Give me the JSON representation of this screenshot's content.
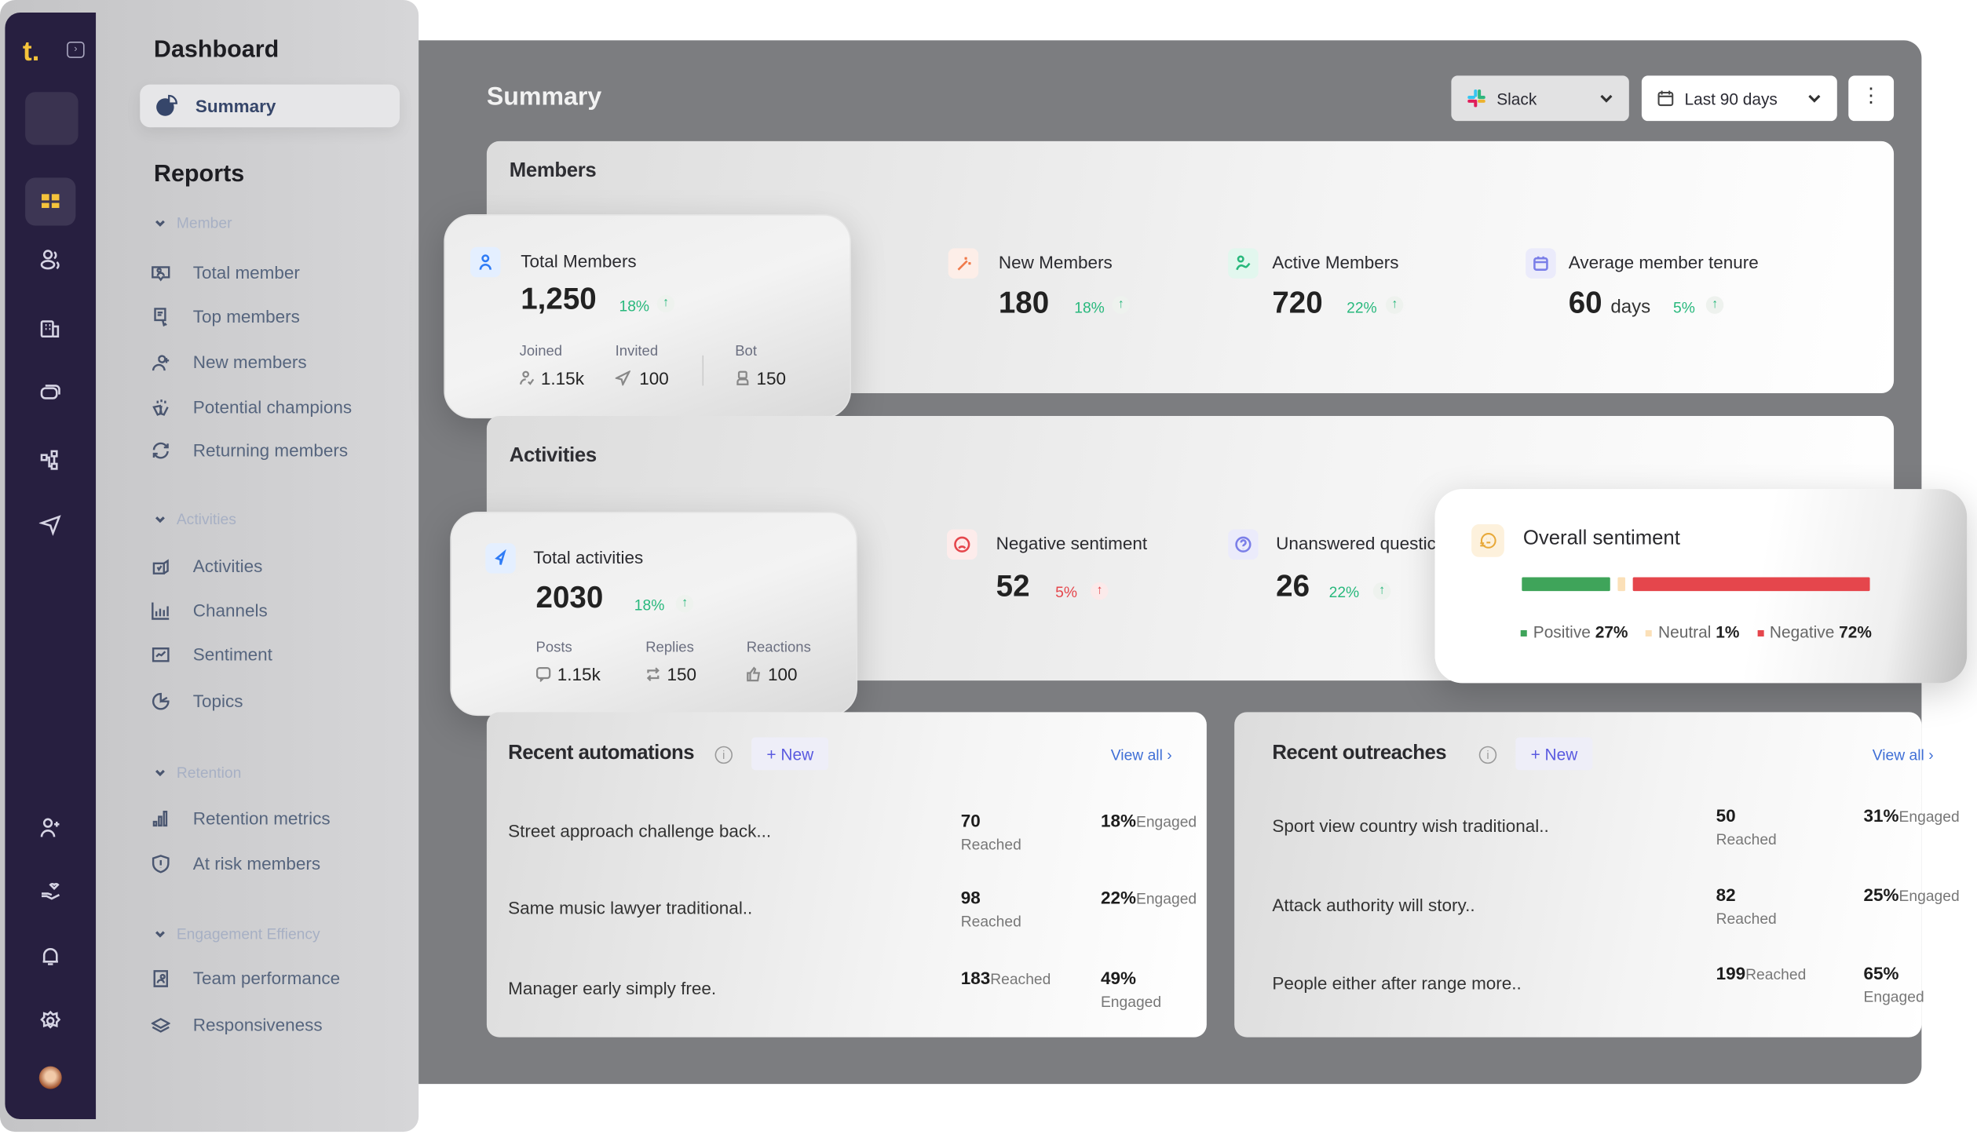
{
  "sidebar": {
    "logo": "t.",
    "title": "Dashboard",
    "summary_label": "Summary",
    "reports_title": "Reports",
    "groups": [
      {
        "label": "Member",
        "items": [
          "Total member",
          "Top members",
          "New members",
          "Potential champions",
          "Returning members"
        ]
      },
      {
        "label": "Activities",
        "items": [
          "Activities",
          "Channels",
          "Sentiment",
          "Topics"
        ]
      },
      {
        "label": "Retention",
        "items": [
          "Retention metrics",
          "At risk members"
        ]
      },
      {
        "label": "Engagement Effiency",
        "items": [
          "Team performance",
          "Responsiveness"
        ]
      }
    ]
  },
  "header": {
    "title": "Summary",
    "platform": "Slack",
    "range": "Last 90 days"
  },
  "members": {
    "title": "Members",
    "total": {
      "label": "Total Members",
      "value": "1,250",
      "change": "18%",
      "joined_label": "Joined",
      "joined": "1.15k",
      "invited_label": "Invited",
      "invited": "100",
      "bot_label": "Bot",
      "bot": "150"
    },
    "new": {
      "label": "New Members",
      "value": "180",
      "change": "18%"
    },
    "active": {
      "label": "Active Members",
      "value": "720",
      "change": "22%"
    },
    "tenure": {
      "label": "Average member tenure",
      "value": "60",
      "unit": "days",
      "change": "5%"
    }
  },
  "activities": {
    "title": "Activities",
    "total": {
      "label": "Total activities",
      "value": "2030",
      "change": "18%",
      "posts_label": "Posts",
      "posts": "1.15k",
      "replies_label": "Replies",
      "replies": "150",
      "reactions_label": "Reactions",
      "reactions": "100"
    },
    "negative": {
      "label": "Negative sentiment",
      "value": "52",
      "change": "5%"
    },
    "unanswered": {
      "label": "Unanswered questic",
      "value": "26",
      "change": "22%"
    }
  },
  "sentiment": {
    "title": "Overall sentiment",
    "positive_label": "Positive",
    "positive": "27%",
    "neutral_label": "Neutral",
    "neutral": "1%",
    "negative_label": "Negative",
    "negative": "72%",
    "levels": {
      "positive": 27,
      "neutral": 1,
      "negative": 72
    },
    "colors": {
      "positive": "#3fa45a",
      "neutral": "#fbe0b8",
      "negative": "#e5464c"
    }
  },
  "automations": {
    "title": "Recent automations",
    "new_label": "+ New",
    "view_all": "View all",
    "rows": [
      {
        "name": "Street approach challenge back...",
        "reached": "70",
        "engaged": "18%"
      },
      {
        "name": "Same music lawyer traditional..",
        "reached": "98",
        "engaged": "22%"
      },
      {
        "name": "Manager early simply free.",
        "reached": "183",
        "engaged": "49%"
      }
    ]
  },
  "outreaches": {
    "title": "Recent outreaches",
    "new_label": "+ New",
    "view_all": "View all",
    "rows": [
      {
        "name": "Sport view country wish traditional..",
        "reached": "50",
        "engaged": "31%"
      },
      {
        "name": "Attack authority will story..",
        "reached": "82",
        "engaged": "25%"
      },
      {
        "name": "People either after range more..",
        "reached": "199",
        "engaged": "65%"
      }
    ]
  },
  "labels": {
    "reached": "Reached",
    "engaged": "Engaged"
  }
}
